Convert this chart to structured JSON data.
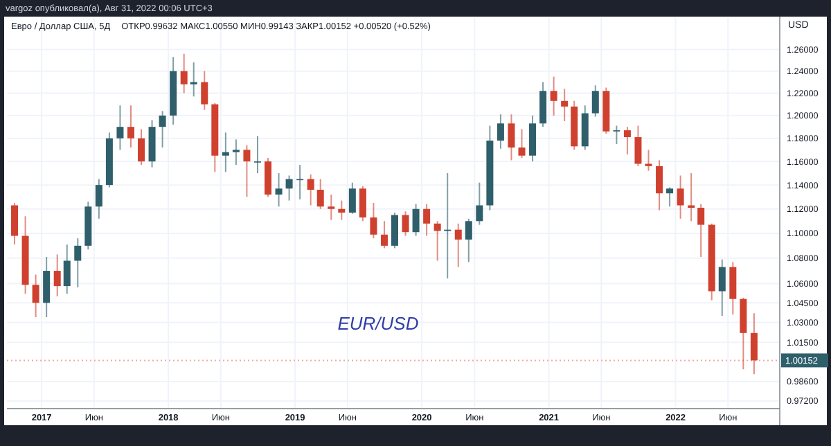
{
  "chart_data": {
    "type": "candlestick",
    "title": "Евро / Доллар США, 5Д",
    "subtitle": "ОТКР0.99632  МАКС1.00550  МИН0.99143  ЗАКР1.00152  +0.00520 (+0.52%)",
    "ylabel": "USD",
    "annotations": [
      "vargoz опубликовал(а), Авг 31, 2022 00:06 UTC+3",
      "EUR/USD"
    ],
    "x": [
      "2016-10-15",
      "2016-11-15",
      "2016-12-15",
      "2017-01-15",
      "2017-02-15",
      "2017-03-15",
      "2017-04-15",
      "2017-05-15",
      "2017-06-15",
      "2017-07-15",
      "2017-08-15",
      "2017-09-15",
      "2017-10-15",
      "2017-11-15",
      "2017-12-15",
      "2018-01-15",
      "2018-02-15",
      "2018-03-15",
      "2018-04-15",
      "2018-05-15",
      "2018-06-15",
      "2018-07-15",
      "2018-08-15",
      "2018-09-15",
      "2018-10-15",
      "2018-11-15",
      "2018-12-15",
      "2019-01-15",
      "2019-02-15",
      "2019-03-15",
      "2019-04-15",
      "2019-05-15",
      "2019-06-15",
      "2019-07-15",
      "2019-08-15",
      "2019-09-15",
      "2019-10-15",
      "2019-11-15",
      "2019-12-15",
      "2020-01-15",
      "2020-02-15",
      "2020-03-15",
      "2020-04-15",
      "2020-05-15",
      "2020-06-15",
      "2020-07-15",
      "2020-08-15",
      "2020-09-15",
      "2020-10-15",
      "2020-11-15",
      "2020-12-15",
      "2021-01-15",
      "2021-02-15",
      "2021-03-15",
      "2021-04-15",
      "2021-05-15",
      "2021-06-15",
      "2021-07-15",
      "2021-08-15",
      "2021-09-15",
      "2021-10-15",
      "2021-11-15",
      "2021-12-15",
      "2022-01-15",
      "2022-02-15",
      "2022-03-15",
      "2022-04-15",
      "2022-05-15",
      "2022-06-15",
      "2022-07-15",
      "2022-08-15"
    ],
    "ohlc": [
      [
        1.123,
        1.125,
        1.091,
        1.098
      ],
      [
        1.098,
        1.114,
        1.052,
        1.059
      ],
      [
        1.059,
        1.067,
        1.034,
        1.045
      ],
      [
        1.045,
        1.081,
        1.034,
        1.07
      ],
      [
        1.07,
        1.083,
        1.05,
        1.058
      ],
      [
        1.058,
        1.091,
        1.052,
        1.078
      ],
      [
        1.078,
        1.096,
        1.057,
        1.09
      ],
      [
        1.09,
        1.126,
        1.087,
        1.122
      ],
      [
        1.122,
        1.145,
        1.112,
        1.14
      ],
      [
        1.14,
        1.185,
        1.138,
        1.18
      ],
      [
        1.18,
        1.209,
        1.17,
        1.19
      ],
      [
        1.19,
        1.209,
        1.172,
        1.18
      ],
      [
        1.18,
        1.188,
        1.157,
        1.16
      ],
      [
        1.16,
        1.196,
        1.155,
        1.19
      ],
      [
        1.19,
        1.204,
        1.172,
        1.2
      ],
      [
        1.2,
        1.253,
        1.192,
        1.24
      ],
      [
        1.24,
        1.256,
        1.22,
        1.228
      ],
      [
        1.228,
        1.248,
        1.217,
        1.23
      ],
      [
        1.23,
        1.24,
        1.205,
        1.21
      ],
      [
        1.21,
        1.211,
        1.151,
        1.165
      ],
      [
        1.165,
        1.185,
        1.151,
        1.168
      ],
      [
        1.168,
        1.179,
        1.157,
        1.17
      ],
      [
        1.17,
        1.174,
        1.13,
        1.16
      ],
      [
        1.16,
        1.182,
        1.15,
        1.16
      ],
      [
        1.16,
        1.163,
        1.13,
        1.132
      ],
      [
        1.132,
        1.15,
        1.122,
        1.137
      ],
      [
        1.137,
        1.148,
        1.127,
        1.145
      ],
      [
        1.145,
        1.157,
        1.128,
        1.145
      ],
      [
        1.145,
        1.149,
        1.123,
        1.136
      ],
      [
        1.136,
        1.145,
        1.12,
        1.122
      ],
      [
        1.122,
        1.132,
        1.111,
        1.12
      ],
      [
        1.12,
        1.127,
        1.111,
        1.117
      ],
      [
        1.117,
        1.142,
        1.116,
        1.137
      ],
      [
        1.137,
        1.139,
        1.11,
        1.113
      ],
      [
        1.113,
        1.125,
        1.096,
        1.099
      ],
      [
        1.099,
        1.11,
        1.088,
        1.09
      ],
      [
        1.09,
        1.117,
        1.088,
        1.115
      ],
      [
        1.115,
        1.118,
        1.098,
        1.101
      ],
      [
        1.101,
        1.124,
        1.098,
        1.12
      ],
      [
        1.12,
        1.124,
        1.098,
        1.108
      ],
      [
        1.108,
        1.11,
        1.078,
        1.102
      ],
      [
        1.102,
        1.15,
        1.064,
        1.103
      ],
      [
        1.103,
        1.108,
        1.073,
        1.095
      ],
      [
        1.095,
        1.112,
        1.077,
        1.11
      ],
      [
        1.11,
        1.142,
        1.107,
        1.123
      ],
      [
        1.123,
        1.191,
        1.119,
        1.178
      ],
      [
        1.178,
        1.201,
        1.171,
        1.193
      ],
      [
        1.193,
        1.201,
        1.161,
        1.172
      ],
      [
        1.172,
        1.188,
        1.163,
        1.165
      ],
      [
        1.165,
        1.2,
        1.16,
        1.193
      ],
      [
        1.193,
        1.23,
        1.19,
        1.222
      ],
      [
        1.222,
        1.235,
        1.2,
        1.213
      ],
      [
        1.213,
        1.224,
        1.195,
        1.208
      ],
      [
        1.208,
        1.213,
        1.17,
        1.173
      ],
      [
        1.173,
        1.209,
        1.17,
        1.202
      ],
      [
        1.202,
        1.227,
        1.199,
        1.222
      ],
      [
        1.222,
        1.225,
        1.184,
        1.186
      ],
      [
        1.186,
        1.191,
        1.175,
        1.187
      ],
      [
        1.187,
        1.19,
        1.166,
        1.181
      ],
      [
        1.181,
        1.191,
        1.156,
        1.158
      ],
      [
        1.158,
        1.17,
        1.152,
        1.156
      ],
      [
        1.156,
        1.161,
        1.119,
        1.133
      ],
      [
        1.133,
        1.138,
        1.122,
        1.137
      ],
      [
        1.137,
        1.148,
        1.112,
        1.123
      ],
      [
        1.123,
        1.15,
        1.11,
        1.121
      ],
      [
        1.121,
        1.124,
        1.081,
        1.107
      ],
      [
        1.107,
        1.108,
        1.047,
        1.054
      ],
      [
        1.054,
        1.079,
        1.035,
        1.073
      ],
      [
        1.073,
        1.077,
        1.036,
        1.048
      ],
      [
        1.048,
        1.049,
        0.995,
        1.022
      ],
      [
        1.022,
        1.037,
        0.9914,
        1.00152
      ]
    ],
    "log": "y",
    "grid": true,
    "xlim": [
      "2016-09-23",
      "2022-10-28"
    ],
    "xticks": [
      {
        "value": "2017-01-01",
        "label": "2017"
      },
      {
        "value": "2017-06-01",
        "label": "Июн"
      },
      {
        "value": "2018-01-01",
        "label": "2018"
      },
      {
        "value": "2018-06-01",
        "label": "Июн"
      },
      {
        "value": "2019-01-01",
        "label": "2019"
      },
      {
        "value": "2019-06-01",
        "label": "Июн"
      },
      {
        "value": "2020-01-01",
        "label": "2020"
      },
      {
        "value": "2020-06-01",
        "label": "Июн"
      },
      {
        "value": "2021-01-01",
        "label": "2021"
      },
      {
        "value": "2021-06-01",
        "label": "Июн"
      },
      {
        "value": "2022-01-01",
        "label": "2022"
      },
      {
        "value": "2022-06-01",
        "label": "Июн"
      }
    ],
    "ylim": [
      0.9665,
      1.2896
    ],
    "yticks": [
      {
        "value": 1.26,
        "label": "1.26000"
      },
      {
        "value": 1.24,
        "label": "1.24000"
      },
      {
        "value": 1.22,
        "label": "1.22000"
      },
      {
        "value": 1.2,
        "label": "1.20000"
      },
      {
        "value": 1.18,
        "label": "1.18000"
      },
      {
        "value": 1.16,
        "label": "1.16000"
      },
      {
        "value": 1.14,
        "label": "1.14000"
      },
      {
        "value": 1.12,
        "label": "1.12000"
      },
      {
        "value": 1.1,
        "label": "1.10000"
      },
      {
        "value": 1.08,
        "label": "1.08000"
      },
      {
        "value": 1.06,
        "label": "1.06000"
      },
      {
        "value": 1.045,
        "label": "1.04500"
      },
      {
        "value": 1.03,
        "label": "1.03000"
      },
      {
        "value": 1.015,
        "label": "1.01500"
      },
      {
        "value": 0.986,
        "label": "0.98600"
      },
      {
        "value": 0.972,
        "label": "0.97200"
      }
    ],
    "ref_lines": [
      {
        "axis": "y",
        "value": 1.00152,
        "label": "1.00152",
        "color": "#f2a7a7",
        "line_style": "dotted"
      }
    ]
  }
}
